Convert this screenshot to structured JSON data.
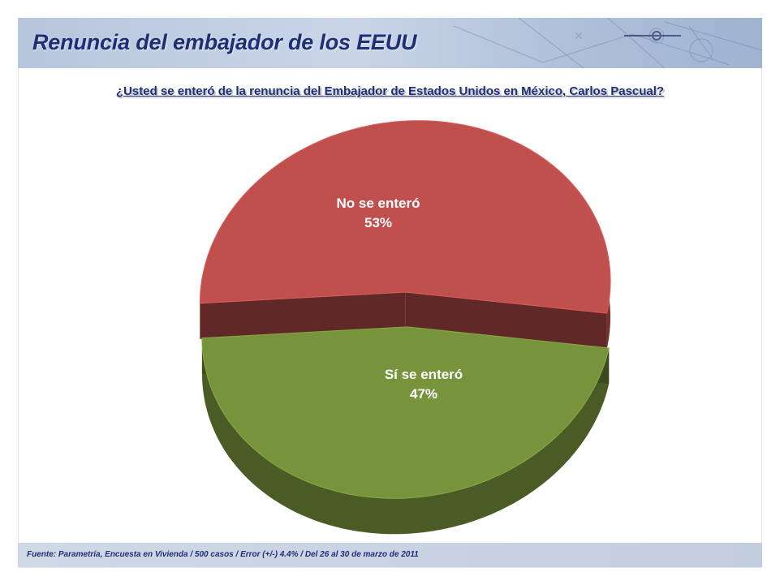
{
  "header": {
    "title": "Renuncia del embajador de los EEUU"
  },
  "question": "¿Usted se enteró de la renuncia del Embajador de Estados Unidos en México, Carlos Pascual?",
  "footer": {
    "source": "Fuente: Parametría, Encuesta en Vivienda / 500 casos / Error (+/-) 4.4% / Del  26 al 30 de marzo de 2011"
  },
  "chart_data": {
    "type": "pie",
    "title": "¿Usted se enteró de la renuncia del Embajador de Estados Unidos en México, Carlos Pascual?",
    "categories": [
      "No se enteró",
      "Sí se enteró"
    ],
    "values": [
      53,
      47
    ],
    "value_labels": [
      "53%",
      "47%"
    ],
    "colors": [
      "#c0504d",
      "#77933c"
    ],
    "style": "3d-exploded"
  }
}
